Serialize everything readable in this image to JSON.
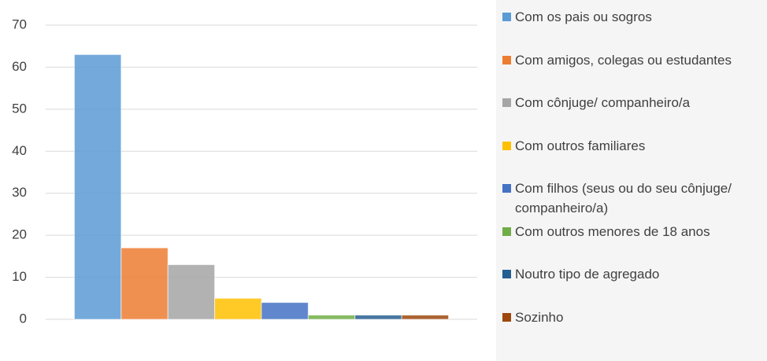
{
  "chart_data": {
    "type": "bar",
    "categories": [
      null
    ],
    "series": [
      {
        "name": "Com os pais ou sogros",
        "color": "#5b9bd5",
        "values": [
          63
        ]
      },
      {
        "name": "Com amigos, colegas ou estudantes",
        "color": "#ed7d31",
        "values": [
          17
        ]
      },
      {
        "name": "Com cônjuge/ companheiro/a",
        "color": "#a5a5a5",
        "values": [
          13
        ]
      },
      {
        "name": "Com outros familiares",
        "color": "#ffc000",
        "values": [
          5
        ]
      },
      {
        "name": "Com filhos (seus ou do seu cônjuge/ companheiro/a)",
        "color": "#4472c4",
        "values": [
          4
        ]
      },
      {
        "name": "Com outros menores de 18 anos",
        "color": "#70ad47",
        "values": [
          1
        ]
      },
      {
        "name": "Noutro tipo de agregado",
        "color": "#255e91",
        "values": [
          1
        ]
      },
      {
        "name": "Sozinho",
        "color": "#9e480e",
        "values": [
          1
        ]
      }
    ],
    "ylim": [
      0,
      70
    ],
    "yticks": [
      0,
      10,
      20,
      30,
      40,
      50,
      60,
      70
    ],
    "grid": true,
    "legend": "right"
  }
}
